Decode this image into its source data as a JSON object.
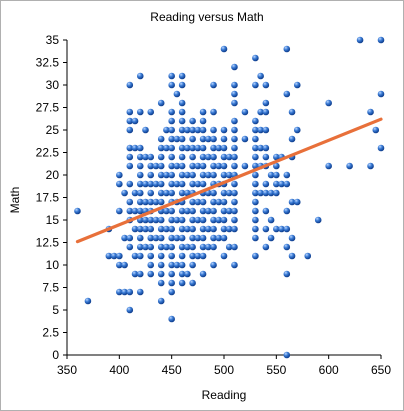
{
  "chart_data": {
    "type": "scatter",
    "title": "Reading versus Math",
    "xlabel": "Reading",
    "ylabel": "Math",
    "xlim": [
      350,
      650
    ],
    "ylim": [
      0,
      35
    ],
    "x_ticks": [
      "350",
      "400",
      "450",
      "500",
      "550",
      "600",
      "650"
    ],
    "y_ticks": [
      "0",
      "2.5",
      "5",
      "7.5",
      "10",
      "12.5",
      "15",
      "17.5",
      "20",
      "22.5",
      "25",
      "27.5",
      "30",
      "32.5",
      "35"
    ],
    "grid": false,
    "legend": "none",
    "colors": {
      "point": "#1f5fb5",
      "trend": "#e8703a"
    },
    "trendline": {
      "x": [
        360,
        650
      ],
      "y": [
        12.6,
        26.2
      ]
    },
    "points": [
      [
        360,
        16
      ],
      [
        370,
        6
      ],
      [
        390,
        11
      ],
      [
        390,
        14
      ],
      [
        395,
        11
      ],
      [
        400,
        7
      ],
      [
        400,
        10
      ],
      [
        400,
        11
      ],
      [
        400,
        16
      ],
      [
        400,
        19
      ],
      [
        400,
        20
      ],
      [
        405,
        7
      ],
      [
        405,
        10
      ],
      [
        405,
        13
      ],
      [
        405,
        18
      ],
      [
        410,
        5
      ],
      [
        410,
        7
      ],
      [
        410,
        12
      ],
      [
        410,
        13
      ],
      [
        410,
        15
      ],
      [
        410,
        16
      ],
      [
        410,
        17
      ],
      [
        410,
        19
      ],
      [
        410,
        21
      ],
      [
        410,
        22
      ],
      [
        410,
        23
      ],
      [
        410,
        25
      ],
      [
        410,
        26
      ],
      [
        410,
        27
      ],
      [
        410,
        30
      ],
      [
        415,
        9
      ],
      [
        415,
        11
      ],
      [
        415,
        14
      ],
      [
        415,
        16
      ],
      [
        415,
        18
      ],
      [
        415,
        23
      ],
      [
        415,
        26
      ],
      [
        420,
        7
      ],
      [
        420,
        9
      ],
      [
        420,
        11
      ],
      [
        420,
        12
      ],
      [
        420,
        13
      ],
      [
        420,
        14
      ],
      [
        420,
        15
      ],
      [
        420,
        16
      ],
      [
        420,
        17
      ],
      [
        420,
        18
      ],
      [
        420,
        19
      ],
      [
        420,
        20
      ],
      [
        420,
        21
      ],
      [
        420,
        22
      ],
      [
        420,
        23
      ],
      [
        420,
        27
      ],
      [
        420,
        31
      ],
      [
        425,
        12
      ],
      [
        425,
        14
      ],
      [
        425,
        15
      ],
      [
        425,
        16
      ],
      [
        425,
        17
      ],
      [
        425,
        19
      ],
      [
        425,
        22
      ],
      [
        425,
        25
      ],
      [
        430,
        9
      ],
      [
        430,
        10
      ],
      [
        430,
        11
      ],
      [
        430,
        12
      ],
      [
        430,
        13
      ],
      [
        430,
        14
      ],
      [
        430,
        15
      ],
      [
        430,
        16
      ],
      [
        430,
        17
      ],
      [
        430,
        18
      ],
      [
        430,
        19
      ],
      [
        430,
        20
      ],
      [
        430,
        21
      ],
      [
        430,
        22
      ],
      [
        430,
        27
      ],
      [
        435,
        13
      ],
      [
        435,
        15
      ],
      [
        435,
        17
      ],
      [
        435,
        19
      ],
      [
        435,
        21
      ],
      [
        440,
        6
      ],
      [
        440,
        8
      ],
      [
        440,
        9
      ],
      [
        440,
        10
      ],
      [
        440,
        11
      ],
      [
        440,
        12
      ],
      [
        440,
        13
      ],
      [
        440,
        14
      ],
      [
        440,
        15
      ],
      [
        440,
        16
      ],
      [
        440,
        17
      ],
      [
        440,
        18
      ],
      [
        440,
        19
      ],
      [
        440,
        20
      ],
      [
        440,
        21
      ],
      [
        440,
        22
      ],
      [
        440,
        23
      ],
      [
        440,
        24
      ],
      [
        440,
        28
      ],
      [
        445,
        12
      ],
      [
        445,
        14
      ],
      [
        445,
        16
      ],
      [
        445,
        18
      ],
      [
        445,
        20
      ],
      [
        445,
        23
      ],
      [
        445,
        25
      ],
      [
        450,
        4
      ],
      [
        450,
        7
      ],
      [
        450,
        8
      ],
      [
        450,
        9
      ],
      [
        450,
        10
      ],
      [
        450,
        11
      ],
      [
        450,
        12
      ],
      [
        450,
        13
      ],
      [
        450,
        14
      ],
      [
        450,
        15
      ],
      [
        450,
        16
      ],
      [
        450,
        17
      ],
      [
        450,
        18
      ],
      [
        450,
        19
      ],
      [
        450,
        20
      ],
      [
        450,
        21
      ],
      [
        450,
        22
      ],
      [
        450,
        23
      ],
      [
        450,
        24
      ],
      [
        450,
        25
      ],
      [
        450,
        26
      ],
      [
        450,
        27
      ],
      [
        450,
        30
      ],
      [
        450,
        31
      ],
      [
        455,
        10
      ],
      [
        455,
        13
      ],
      [
        455,
        15
      ],
      [
        455,
        17
      ],
      [
        455,
        19
      ],
      [
        455,
        21
      ],
      [
        455,
        24
      ],
      [
        455,
        29
      ],
      [
        460,
        8
      ],
      [
        460,
        9
      ],
      [
        460,
        10
      ],
      [
        460,
        11
      ],
      [
        460,
        12
      ],
      [
        460,
        13
      ],
      [
        460,
        14
      ],
      [
        460,
        15
      ],
      [
        460,
        16
      ],
      [
        460,
        17
      ],
      [
        460,
        18
      ],
      [
        460,
        19
      ],
      [
        460,
        20
      ],
      [
        460,
        21
      ],
      [
        460,
        22
      ],
      [
        460,
        23
      ],
      [
        460,
        24
      ],
      [
        460,
        25
      ],
      [
        460,
        26
      ],
      [
        460,
        27
      ],
      [
        460,
        28
      ],
      [
        460,
        30
      ],
      [
        460,
        31
      ],
      [
        465,
        9
      ],
      [
        465,
        12
      ],
      [
        465,
        14
      ],
      [
        465,
        16
      ],
      [
        465,
        18
      ],
      [
        465,
        20
      ],
      [
        465,
        23
      ],
      [
        465,
        25
      ],
      [
        470,
        8
      ],
      [
        470,
        10
      ],
      [
        470,
        11
      ],
      [
        470,
        12
      ],
      [
        470,
        13
      ],
      [
        470,
        14
      ],
      [
        470,
        15
      ],
      [
        470,
        16
      ],
      [
        470,
        17
      ],
      [
        470,
        18
      ],
      [
        470,
        19
      ],
      [
        470,
        20
      ],
      [
        470,
        21
      ],
      [
        470,
        22
      ],
      [
        470,
        23
      ],
      [
        470,
        24
      ],
      [
        470,
        25
      ],
      [
        470,
        26
      ],
      [
        475,
        11
      ],
      [
        475,
        13
      ],
      [
        475,
        15
      ],
      [
        475,
        17
      ],
      [
        475,
        19
      ],
      [
        475,
        21
      ],
      [
        475,
        23
      ],
      [
        475,
        25
      ],
      [
        480,
        9
      ],
      [
        480,
        11
      ],
      [
        480,
        12
      ],
      [
        480,
        13
      ],
      [
        480,
        14
      ],
      [
        480,
        15
      ],
      [
        480,
        16
      ],
      [
        480,
        17
      ],
      [
        480,
        18
      ],
      [
        480,
        19
      ],
      [
        480,
        20
      ],
      [
        480,
        21
      ],
      [
        480,
        22
      ],
      [
        480,
        23
      ],
      [
        480,
        24
      ],
      [
        480,
        25
      ],
      [
        480,
        26
      ],
      [
        480,
        27
      ],
      [
        485,
        12
      ],
      [
        485,
        14
      ],
      [
        485,
        16
      ],
      [
        485,
        18
      ],
      [
        485,
        20
      ],
      [
        485,
        22
      ],
      [
        485,
        24
      ],
      [
        490,
        10
      ],
      [
        490,
        12
      ],
      [
        490,
        13
      ],
      [
        490,
        14
      ],
      [
        490,
        15
      ],
      [
        490,
        16
      ],
      [
        490,
        17
      ],
      [
        490,
        18
      ],
      [
        490,
        19
      ],
      [
        490,
        20
      ],
      [
        490,
        21
      ],
      [
        490,
        22
      ],
      [
        490,
        23
      ],
      [
        490,
        24
      ],
      [
        490,
        25
      ],
      [
        490,
        27
      ],
      [
        490,
        30
      ],
      [
        495,
        13
      ],
      [
        495,
        15
      ],
      [
        495,
        17
      ],
      [
        495,
        19
      ],
      [
        495,
        21
      ],
      [
        495,
        23
      ],
      [
        500,
        11
      ],
      [
        500,
        13
      ],
      [
        500,
        14
      ],
      [
        500,
        15
      ],
      [
        500,
        16
      ],
      [
        500,
        17
      ],
      [
        500,
        18
      ],
      [
        500,
        19
      ],
      [
        500,
        20
      ],
      [
        500,
        21
      ],
      [
        500,
        22
      ],
      [
        500,
        23
      ],
      [
        500,
        24
      ],
      [
        500,
        25
      ],
      [
        500,
        34
      ],
      [
        505,
        12
      ],
      [
        505,
        14
      ],
      [
        505,
        16
      ],
      [
        505,
        18
      ],
      [
        505,
        20
      ],
      [
        505,
        22
      ],
      [
        510,
        10
      ],
      [
        510,
        12
      ],
      [
        510,
        14
      ],
      [
        510,
        15
      ],
      [
        510,
        16
      ],
      [
        510,
        17
      ],
      [
        510,
        18
      ],
      [
        510,
        19
      ],
      [
        510,
        20
      ],
      [
        510,
        21
      ],
      [
        510,
        22
      ],
      [
        510,
        23
      ],
      [
        510,
        24
      ],
      [
        510,
        25
      ],
      [
        510,
        26
      ],
      [
        510,
        28
      ],
      [
        510,
        29
      ],
      [
        510,
        30
      ],
      [
        510,
        32
      ],
      [
        520,
        21
      ],
      [
        520,
        24
      ],
      [
        520,
        27
      ],
      [
        530,
        11
      ],
      [
        530,
        13
      ],
      [
        530,
        14
      ],
      [
        530,
        15
      ],
      [
        530,
        16
      ],
      [
        530,
        17
      ],
      [
        530,
        18
      ],
      [
        530,
        19
      ],
      [
        530,
        20
      ],
      [
        530,
        21
      ],
      [
        530,
        22
      ],
      [
        530,
        23
      ],
      [
        530,
        24
      ],
      [
        530,
        25
      ],
      [
        530,
        26
      ],
      [
        530,
        30
      ],
      [
        530,
        33
      ],
      [
        535,
        18
      ],
      [
        535,
        21
      ],
      [
        535,
        23
      ],
      [
        535,
        25
      ],
      [
        535,
        27
      ],
      [
        535,
        31
      ],
      [
        540,
        12
      ],
      [
        540,
        14
      ],
      [
        540,
        16
      ],
      [
        540,
        18
      ],
      [
        540,
        19
      ],
      [
        540,
        21
      ],
      [
        540,
        22
      ],
      [
        540,
        23
      ],
      [
        540,
        25
      ],
      [
        540,
        27
      ],
      [
        540,
        28
      ],
      [
        540,
        30
      ],
      [
        545,
        13
      ],
      [
        545,
        15
      ],
      [
        545,
        18
      ],
      [
        545,
        20
      ],
      [
        550,
        14
      ],
      [
        550,
        18
      ],
      [
        550,
        19
      ],
      [
        550,
        20
      ],
      [
        550,
        21
      ],
      [
        550,
        22
      ],
      [
        555,
        14
      ],
      [
        555,
        19
      ],
      [
        555,
        22
      ],
      [
        560,
        0
      ],
      [
        560,
        9
      ],
      [
        560,
        12
      ],
      [
        560,
        14
      ],
      [
        560,
        16
      ],
      [
        560,
        19
      ],
      [
        560,
        20
      ],
      [
        560,
        29
      ],
      [
        560,
        34
      ],
      [
        565,
        11
      ],
      [
        565,
        13
      ],
      [
        565,
        17
      ],
      [
        565,
        22
      ],
      [
        565,
        24
      ],
      [
        565,
        27
      ],
      [
        570,
        17
      ],
      [
        570,
        25
      ],
      [
        570,
        30
      ],
      [
        580,
        11
      ],
      [
        590,
        15
      ],
      [
        600,
        21
      ],
      [
        600,
        28
      ],
      [
        620,
        21
      ],
      [
        630,
        35
      ],
      [
        640,
        21
      ],
      [
        640,
        27
      ],
      [
        645,
        25
      ],
      [
        650,
        23
      ],
      [
        650,
        29
      ],
      [
        650,
        35
      ]
    ]
  }
}
